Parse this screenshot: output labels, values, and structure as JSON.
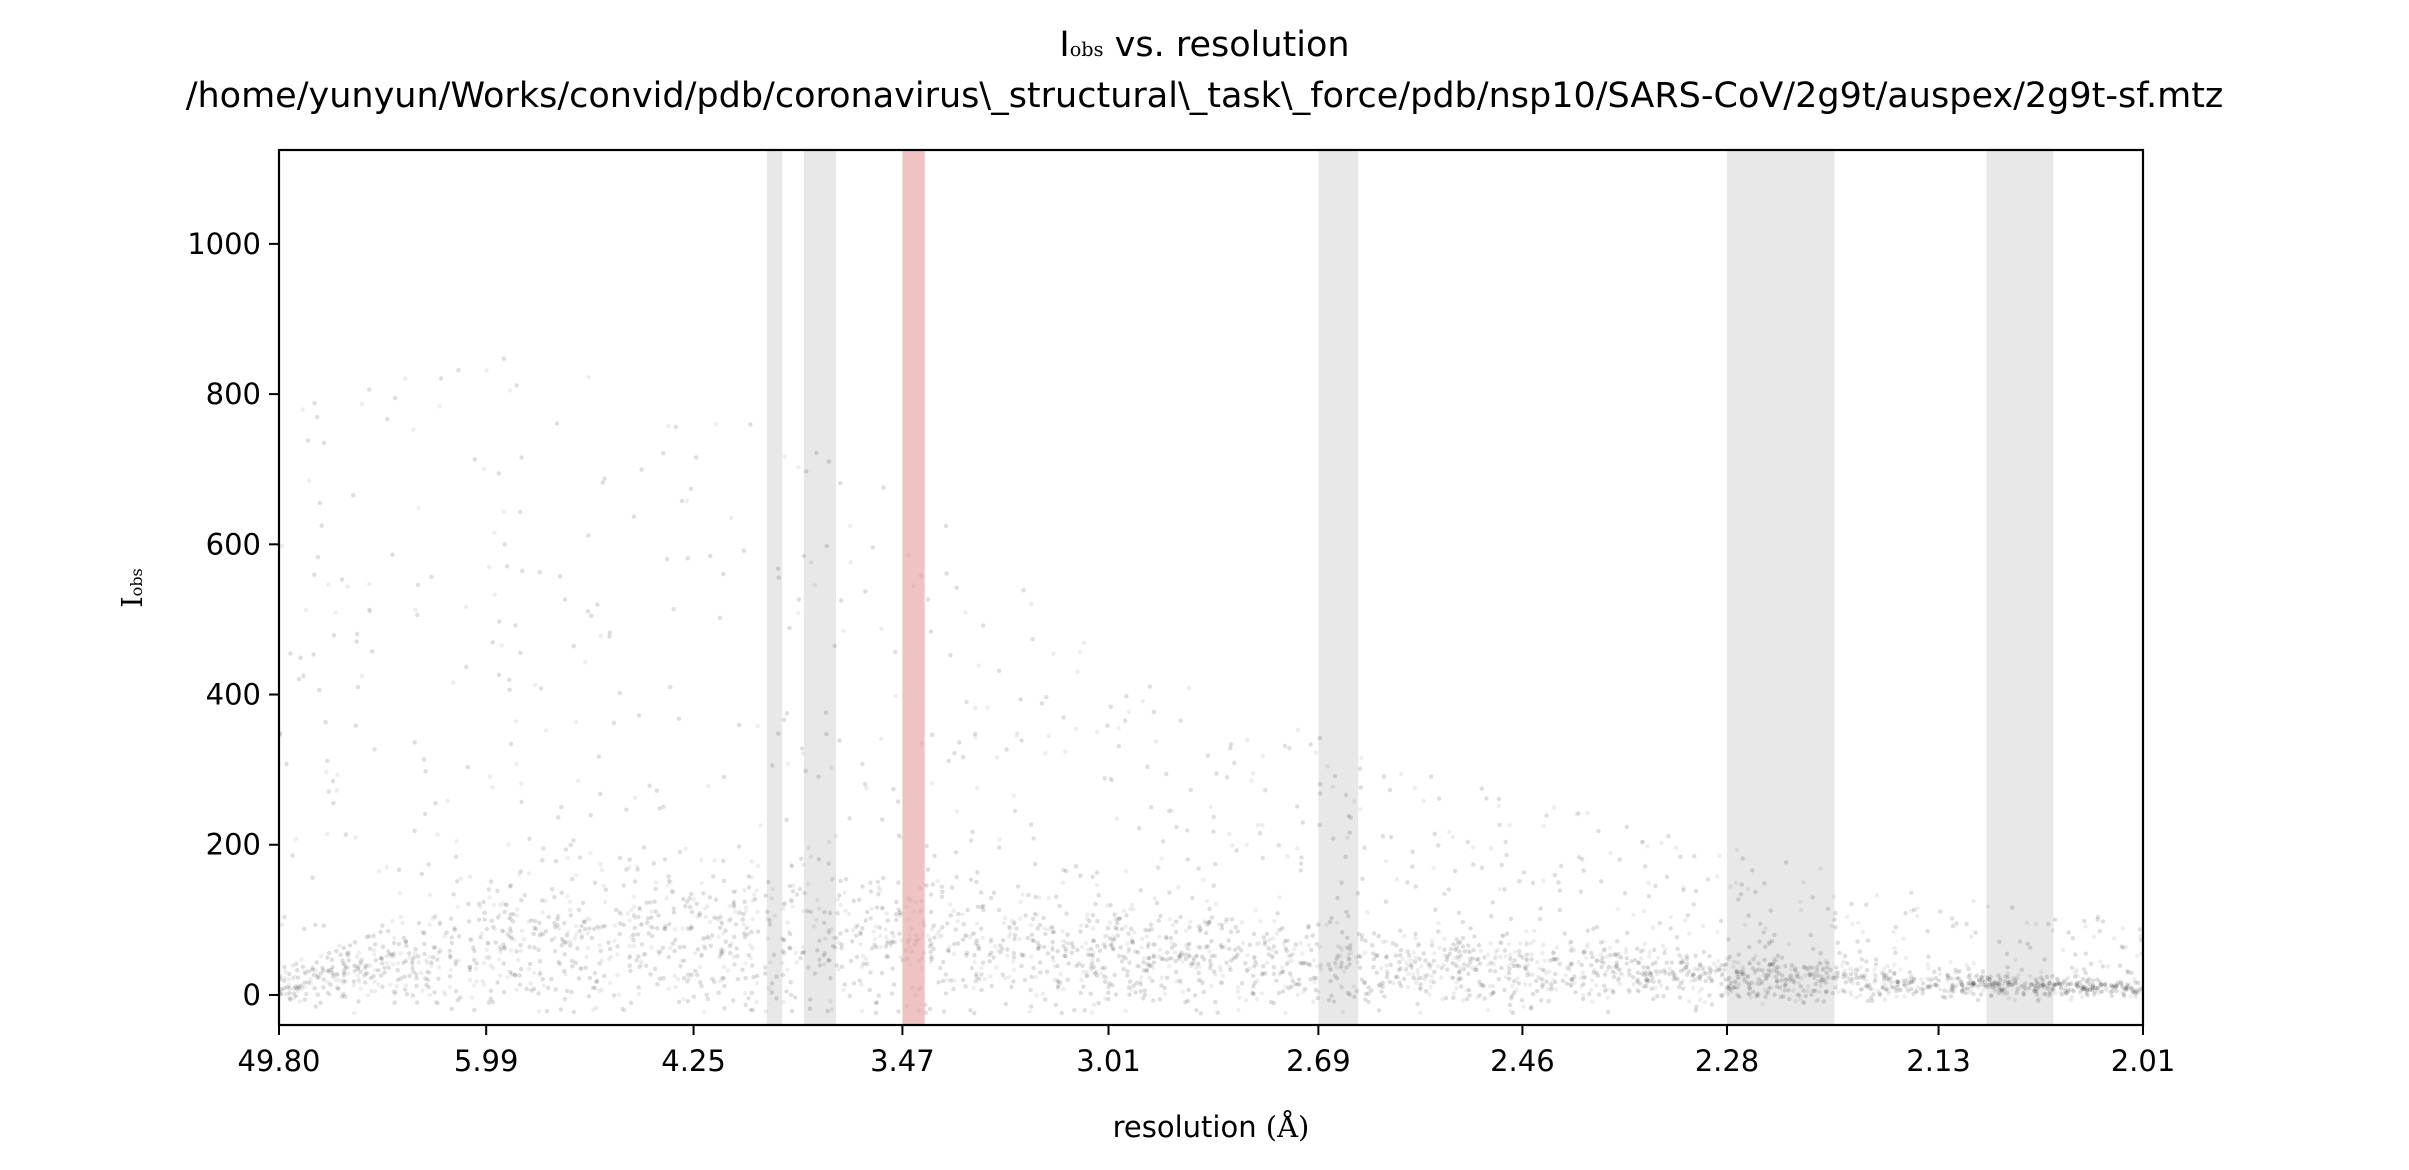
{
  "chart_data": {
    "type": "scatter",
    "title": {
      "line1_symbol": "I",
      "line1_sub": "obs",
      "line1_rest": " vs. resolution",
      "line2": "/home/yunyun/Works/convid/pdb/coronavirus\\_structural\\_task\\_force/pdb/nsp10/SARS-CoV/2g9t/auspex/2g9t-sf.mtz"
    },
    "xlabel": {
      "text": "resolution ",
      "unit": "(Å)"
    },
    "ylabel": {
      "symbol": "I",
      "sub": "obs"
    },
    "x_axis": {
      "scale": "inverse-squared resolution",
      "ticks": [
        "49.80",
        "5.99",
        "4.25",
        "3.47",
        "3.01",
        "2.69",
        "2.46",
        "2.28",
        "2.13",
        "2.01"
      ]
    },
    "y_axis": {
      "ylim": [
        -40,
        1125
      ],
      "ticks": [
        0,
        200,
        400,
        600,
        800,
        1000
      ]
    },
    "ice_ring_bands": [
      {
        "from_res": 3.92,
        "to_res": 3.86
      },
      {
        "from_res": 3.78,
        "to_res": 3.67
      },
      {
        "from_res": 2.69,
        "to_res": 2.64
      },
      {
        "from_res": 2.28,
        "to_res": 2.2
      },
      {
        "from_res": 2.1,
        "to_res": 2.06
      }
    ],
    "highlight_band": {
      "from_res": 3.47,
      "to_res": 3.41
    },
    "series": {
      "points": "dense cloud of reflections; median intensity decreasing with resolution",
      "envelope": [
        {
          "res": 49.8,
          "median": 15,
          "spread": 350
        },
        {
          "res": 5.99,
          "median": 60,
          "spread": 360
        },
        {
          "res": 4.25,
          "median": 75,
          "spread": 330
        },
        {
          "res": 3.47,
          "median": 70,
          "spread": 280
        },
        {
          "res": 3.01,
          "median": 50,
          "spread": 190
        },
        {
          "res": 2.69,
          "median": 40,
          "spread": 140
        },
        {
          "res": 2.46,
          "median": 32,
          "spread": 105
        },
        {
          "res": 2.28,
          "median": 22,
          "spread": 80
        },
        {
          "res": 2.13,
          "median": 13,
          "spread": 55
        },
        {
          "res": 2.01,
          "median": 8,
          "spread": 40
        }
      ]
    },
    "colors": {
      "points": "#111111",
      "ice_ring": "#d9d9d9",
      "highlight": "#e6a3a3"
    },
    "grid": false,
    "legend": "none"
  }
}
